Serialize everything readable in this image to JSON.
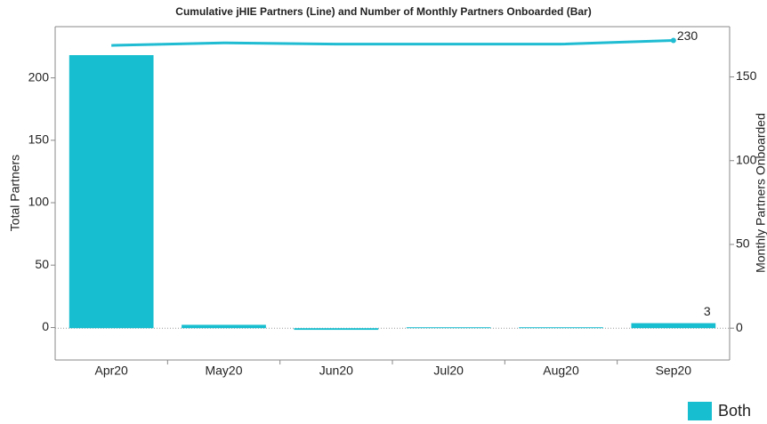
{
  "chart_data": {
    "type": "bar-line",
    "title": "Cumulative jHIE Partners (Line) and Number of Monthly Partners Onboarded (Bar)",
    "ylabel": "Total Partners",
    "y2label": "Monthly Partners Onboarded",
    "categories": [
      "Apr20",
      "May20",
      "Jun20",
      "Jul20",
      "Aug20",
      "Sep20"
    ],
    "series": [
      {
        "name": "Both",
        "type": "bar",
        "axis": "y2",
        "color": "#17becf",
        "values": [
          163,
          2,
          -1,
          0,
          0,
          3
        ]
      },
      {
        "type": "line",
        "axis": "y",
        "color": "#1fbcd2",
        "values": [
          226,
          228,
          227,
          227,
          227,
          230
        ]
      }
    ],
    "ylim": [
      -26,
      241
    ],
    "yticks": [
      0,
      50,
      100,
      150,
      200
    ],
    "y2lim": [
      -19,
      180
    ],
    "y2ticks": [
      0,
      50,
      100,
      150
    ],
    "legend": "bottom-right"
  }
}
